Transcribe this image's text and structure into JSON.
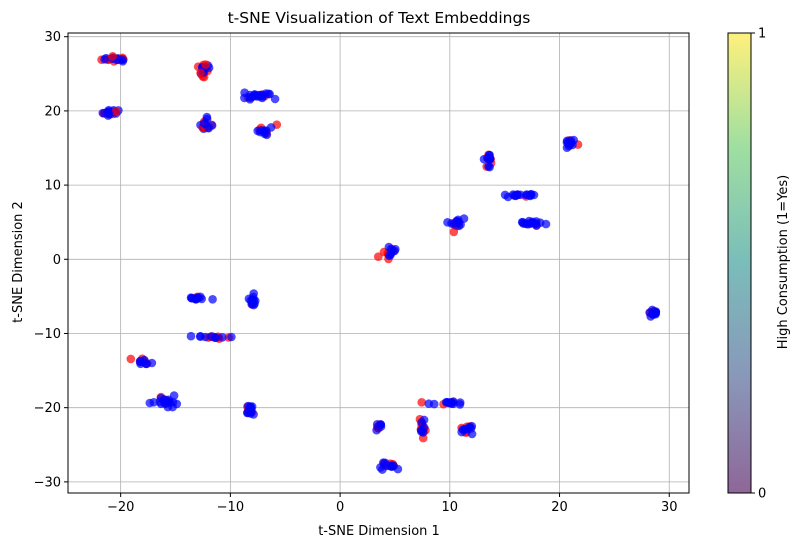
{
  "chart_data": {
    "type": "scatter",
    "title": "t-SNE Visualization of Text Embeddings",
    "xlabel": "t-SNE Dimension 1",
    "ylabel": "t-SNE Dimension 2",
    "xlim": [
      -24.8,
      31.8
    ],
    "ylim": [
      -31.5,
      30.5
    ],
    "xticks": [
      -20,
      -10,
      0,
      10,
      20,
      30
    ],
    "xtick_labels": [
      "−20",
      "−10",
      "0",
      "10",
      "20",
      "30"
    ],
    "yticks": [
      -30,
      -20,
      -10,
      0,
      10,
      20,
      30
    ],
    "ytick_labels": [
      "−30",
      "−20",
      "−10",
      "0",
      "10",
      "20",
      "30"
    ],
    "grid": true,
    "point_alpha": 0.7,
    "colors": {
      "high": "#ff0000",
      "low": "#0000ff",
      "grid": "#b0b0b0"
    },
    "colorbar": {
      "label": "High Consumption (1=Yes)",
      "ticks": [
        0,
        1
      ],
      "tick_labels": [
        "0",
        "1"
      ],
      "gradient": [
        "#440154",
        "#3b528b",
        "#21918c",
        "#5ec962",
        "#fde725"
      ],
      "alpha": 0.6
    },
    "clusters": [
      {
        "cx": -20.5,
        "cy": 27.0,
        "sx": 1.0,
        "sy": 0.3,
        "n": 22,
        "red": 0.35
      },
      {
        "cx": -21.0,
        "cy": 19.8,
        "sx": 0.9,
        "sy": 0.3,
        "n": 18,
        "red": 0.25
      },
      {
        "cx": -12.5,
        "cy": 25.5,
        "sx": 0.5,
        "sy": 0.7,
        "n": 16,
        "red": 0.45
      },
      {
        "cx": -12.3,
        "cy": 18.0,
        "sx": 0.4,
        "sy": 1.0,
        "n": 16,
        "red": 0.25
      },
      {
        "cx": -7.5,
        "cy": 22.0,
        "sx": 1.3,
        "sy": 0.3,
        "n": 24,
        "red": 0.1
      },
      {
        "cx": -7.0,
        "cy": 17.2,
        "sx": 0.5,
        "sy": 0.5,
        "n": 12,
        "red": 0.3
      },
      {
        "cx": -5.8,
        "cy": 18.2,
        "sx": 0.1,
        "sy": 0.1,
        "n": 1,
        "red": 1.0
      },
      {
        "cx": -13.0,
        "cy": -5.2,
        "sx": 0.8,
        "sy": 0.3,
        "n": 14,
        "red": 0.35
      },
      {
        "cx": -8.0,
        "cy": -5.5,
        "sx": 0.3,
        "sy": 0.8,
        "n": 14,
        "red": 0.2
      },
      {
        "cx": -11.5,
        "cy": -10.5,
        "sx": 1.0,
        "sy": 0.2,
        "n": 16,
        "red": 0.35
      },
      {
        "cx": -18.0,
        "cy": -13.8,
        "sx": 0.7,
        "sy": 0.3,
        "n": 12,
        "red": 0.4
      },
      {
        "cx": -15.8,
        "cy": -19.2,
        "sx": 1.1,
        "sy": 0.5,
        "n": 20,
        "red": 0.2
      },
      {
        "cx": -8.2,
        "cy": -20.3,
        "sx": 0.3,
        "sy": 0.8,
        "n": 18,
        "red": 0.3
      },
      {
        "cx": 4.5,
        "cy": 1.0,
        "sx": 0.5,
        "sy": 0.7,
        "n": 14,
        "red": 0.3
      },
      {
        "cx": 10.5,
        "cy": 4.8,
        "sx": 0.6,
        "sy": 0.7,
        "n": 14,
        "red": 0.3
      },
      {
        "cx": 13.5,
        "cy": 13.5,
        "sx": 0.3,
        "sy": 1.0,
        "n": 16,
        "red": 0.35
      },
      {
        "cx": 16.0,
        "cy": 8.6,
        "sx": 1.2,
        "sy": 0.3,
        "n": 18,
        "red": 0.35
      },
      {
        "cx": 17.5,
        "cy": 4.8,
        "sx": 1.2,
        "sy": 0.3,
        "n": 18,
        "red": 0.15
      },
      {
        "cx": 20.9,
        "cy": 15.6,
        "sx": 0.4,
        "sy": 0.6,
        "n": 16,
        "red": 0.3
      },
      {
        "cx": 28.5,
        "cy": -7.2,
        "sx": 0.3,
        "sy": 0.3,
        "n": 16,
        "red": 0.35
      },
      {
        "cx": 3.5,
        "cy": -22.5,
        "sx": 0.3,
        "sy": 0.6,
        "n": 10,
        "red": 0.45
      },
      {
        "cx": 4.2,
        "cy": -27.8,
        "sx": 1.0,
        "sy": 0.3,
        "n": 18,
        "red": 0.35
      },
      {
        "cx": 7.5,
        "cy": -22.5,
        "sx": 0.2,
        "sy": 1.2,
        "n": 16,
        "red": 0.45
      },
      {
        "cx": 10.0,
        "cy": -19.4,
        "sx": 1.5,
        "sy": 0.2,
        "n": 16,
        "red": 0.35
      },
      {
        "cx": 11.5,
        "cy": -23.0,
        "sx": 0.9,
        "sy": 0.5,
        "n": 14,
        "red": 0.3
      }
    ]
  }
}
